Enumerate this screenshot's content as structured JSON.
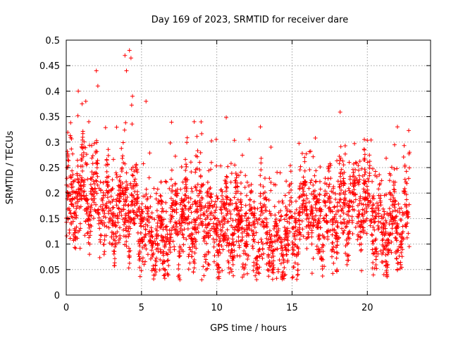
{
  "chart_data": {
    "type": "scatter",
    "title": "Day 169 of 2023, SRMTID for receiver dare",
    "xlabel": "GPS time / hours",
    "ylabel": "SRMTID / TECUs",
    "xlim": [
      0,
      24.2
    ],
    "ylim": [
      0,
      0.5
    ],
    "xticks": [
      0,
      5,
      10,
      15,
      20
    ],
    "xtick_labels": [
      "0",
      "5",
      "10",
      "15",
      "20"
    ],
    "yticks": [
      0,
      0.05,
      0.1,
      0.15,
      0.2,
      0.25,
      0.3,
      0.35,
      0.4,
      0.45,
      0.5
    ],
    "ytick_labels": [
      "0",
      "0.05",
      "0.1",
      "0.15",
      "0.2",
      "0.25",
      "0.3",
      "0.35",
      "0.4",
      "0.45",
      "0.5"
    ],
    "grid": true,
    "marker": "+",
    "marker_color": "#ff0000",
    "series": [
      {
        "name": "SRMTID",
        "x_start": 0.0,
        "x_end": 22.8,
        "approx_point_count": 2800,
        "baseline_profile": [
          {
            "x": 0,
            "y": 0.17
          },
          {
            "x": 1,
            "y": 0.2
          },
          {
            "x": 2,
            "y": 0.19
          },
          {
            "x": 3,
            "y": 0.15
          },
          {
            "x": 4,
            "y": 0.19
          },
          {
            "x": 5,
            "y": 0.14
          },
          {
            "x": 6,
            "y": 0.1
          },
          {
            "x": 7,
            "y": 0.13
          },
          {
            "x": 8,
            "y": 0.15
          },
          {
            "x": 9,
            "y": 0.16
          },
          {
            "x": 10,
            "y": 0.13
          },
          {
            "x": 11,
            "y": 0.14
          },
          {
            "x": 12,
            "y": 0.13
          },
          {
            "x": 13,
            "y": 0.13
          },
          {
            "x": 14,
            "y": 0.1
          },
          {
            "x": 15,
            "y": 0.12
          },
          {
            "x": 16,
            "y": 0.17
          },
          {
            "x": 17,
            "y": 0.14
          },
          {
            "x": 18,
            "y": 0.16
          },
          {
            "x": 19,
            "y": 0.17
          },
          {
            "x": 20,
            "y": 0.18
          },
          {
            "x": 21,
            "y": 0.12
          },
          {
            "x": 22,
            "y": 0.14
          },
          {
            "x": 22.8,
            "y": 0.16
          }
        ],
        "notable_points": [
          {
            "x": 0.1,
            "y": 0.25
          },
          {
            "x": 0.8,
            "y": 0.4
          },
          {
            "x": 1.3,
            "y": 0.38
          },
          {
            "x": 1.5,
            "y": 0.34
          },
          {
            "x": 2.0,
            "y": 0.44
          },
          {
            "x": 2.1,
            "y": 0.41
          },
          {
            "x": 3.9,
            "y": 0.47
          },
          {
            "x": 4.0,
            "y": 0.44
          },
          {
            "x": 4.2,
            "y": 0.48
          },
          {
            "x": 4.3,
            "y": 0.465
          },
          {
            "x": 4.4,
            "y": 0.39
          },
          {
            "x": 5.3,
            "y": 0.38
          },
          {
            "x": 8.5,
            "y": 0.34
          },
          {
            "x": 12.9,
            "y": 0.33
          },
          {
            "x": 13.6,
            "y": 0.29
          },
          {
            "x": 19.8,
            "y": 0.305
          },
          {
            "x": 22.0,
            "y": 0.33
          },
          {
            "x": 22.8,
            "y": 0.28
          },
          {
            "x": 9.0,
            "y": 0.03
          },
          {
            "x": 21.1,
            "y": 0.04
          }
        ]
      }
    ]
  }
}
